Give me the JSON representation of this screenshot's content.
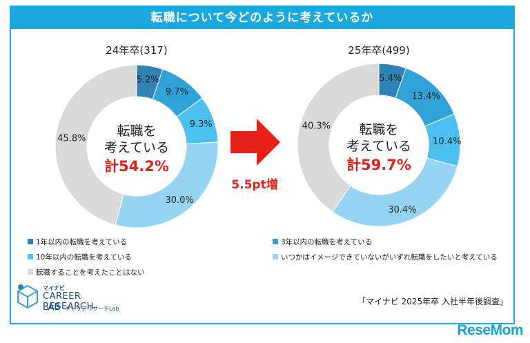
{
  "title": "転職について今どのように考えているか",
  "chart_data": [
    {
      "type": "pie",
      "title": "24年卒(317)",
      "center_line1": "転職を",
      "center_line2": "考えている",
      "center_total": "計54.2%",
      "slices": [
        {
          "label": "1年以内の転職を考えている",
          "value": 5.2,
          "text": "5.2%",
          "color": "#2f83b5"
        },
        {
          "label": "3年以内の転職を考えている",
          "value": 9.7,
          "text": "9.7%",
          "color": "#2fa3d8"
        },
        {
          "label": "10年以内の転職を考えている",
          "value": 9.3,
          "text": "9.3%",
          "color": "#4cc0ee"
        },
        {
          "label": "いつかはイメージできていないがいずれ転職をしたいと考えている",
          "value": 30.0,
          "text": "30.0%",
          "color": "#95d5f3"
        },
        {
          "label": "転職することを考えたことはない",
          "value": 45.8,
          "text": "45.8%",
          "color": "#d9d9d9"
        }
      ]
    },
    {
      "type": "pie",
      "title": "25年卒(499)",
      "center_line1": "転職を",
      "center_line2": "考えている",
      "center_total": "計59.7%",
      "slices": [
        {
          "label": "1年以内の転職を考えている",
          "value": 5.4,
          "text": "5.4%",
          "color": "#2f83b5"
        },
        {
          "label": "3年以内の転職を考えている",
          "value": 13.4,
          "text": "13.4%",
          "color": "#2fa3d8"
        },
        {
          "label": "10年以内の転職を考えている",
          "value": 10.4,
          "text": "10.4%",
          "color": "#4cc0ee"
        },
        {
          "label": "いつかはイメージできていないがいずれ転職をしたいと考えている",
          "value": 30.4,
          "text": "30.4%",
          "color": "#95d5f3"
        },
        {
          "label": "転職することを考えたことはない",
          "value": 40.3,
          "text": "40.3%",
          "color": "#d9d9d9"
        }
      ]
    }
  ],
  "arrow_label": "5.5pt増",
  "legend_left": [
    {
      "text": "1年以内の転職を考えている",
      "color": "#2f83b5"
    },
    {
      "text": "10年以内の転職を考えている",
      "color": "#4cc0ee"
    },
    {
      "text": "転職することを考えたことはない",
      "color": "#d9d9d9"
    }
  ],
  "legend_right": [
    {
      "text": "3年以内の転職を考えている",
      "color": "#2fa3d8"
    },
    {
      "text": "いつかはイメージできていないがいずれ転職をしたいと考えている",
      "color": "#95d5f3"
    }
  ],
  "logo": {
    "small": "マイナビ",
    "main": "CAREER RESEARCH",
    "lab": "LAB",
    "sub": "キャリアリサーチLab"
  },
  "source": "「マイナビ 2025年卒 入社半年後調査」",
  "watermark": "ReseMom"
}
